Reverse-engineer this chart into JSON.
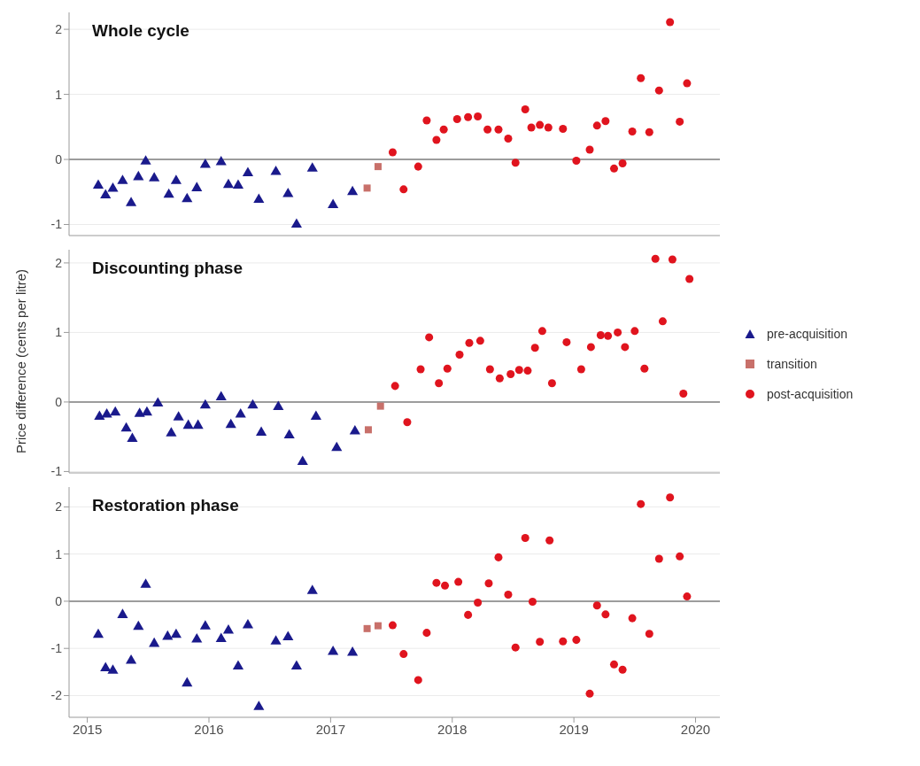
{
  "chart_data": [
    {
      "type": "scatter",
      "title": "Whole cycle",
      "xlim": [
        2014.85,
        2020.2
      ],
      "xticks": [
        2015,
        2016,
        2017,
        2018,
        2019,
        2020
      ],
      "ylim": [
        -1.17,
        2.26
      ],
      "yticks": [
        -1,
        0,
        1,
        2
      ],
      "grid": "y",
      "tick_labels": "y",
      "ref_lines": [
        {
          "axis": "y",
          "value": 0,
          "color": "#7f7f7f"
        }
      ],
      "series": [
        {
          "color": "#1a1a8c",
          "marker": "triangle",
          "x": [
            2015.09,
            2015.15,
            2015.21,
            2015.29,
            2015.36,
            2015.42,
            2015.48,
            2015.55,
            2015.67,
            2015.73,
            2015.82,
            2015.9,
            2015.97,
            2016.1,
            2016.16,
            2016.24,
            2016.32,
            2016.41,
            2016.55,
            2016.65,
            2016.72,
            2016.85,
            2017.02,
            2017.18
          ],
          "values": [
            -0.4,
            -0.55,
            -0.45,
            -0.33,
            -0.67,
            -0.27,
            -0.03,
            -0.29,
            -0.54,
            -0.33,
            -0.61,
            -0.44,
            -0.08,
            -0.04,
            -0.39,
            -0.4,
            -0.21,
            -0.62,
            -0.19,
            -0.53,
            -1.0,
            -0.14,
            -0.7,
            -0.5
          ]
        },
        {
          "color": "#c8706a",
          "marker": "square",
          "x": [
            2017.3,
            2017.39
          ],
          "values": [
            -0.44,
            -0.11
          ]
        },
        {
          "color": "#e0141e",
          "marker": "circle",
          "x": [
            2017.51,
            2017.6,
            2017.72,
            2017.79,
            2017.87,
            2017.93,
            2018.04,
            2018.13,
            2018.21,
            2018.29,
            2018.38,
            2018.46,
            2018.52,
            2018.6,
            2018.65,
            2018.72,
            2018.79,
            2018.91,
            2019.02,
            2019.13,
            2019.19,
            2019.26,
            2019.33,
            2019.4,
            2019.48,
            2019.55,
            2019.62,
            2019.7,
            2019.79,
            2019.87,
            2019.93
          ],
          "values": [
            0.11,
            -0.46,
            -0.11,
            0.6,
            0.3,
            0.46,
            0.62,
            0.65,
            0.66,
            0.46,
            0.46,
            0.32,
            -0.05,
            0.77,
            0.49,
            0.53,
            0.49,
            0.47,
            -0.02,
            0.15,
            0.52,
            0.59,
            -0.14,
            -0.06,
            0.43,
            1.25,
            0.42,
            1.06,
            2.11,
            0.58,
            1.17
          ]
        }
      ]
    },
    {
      "type": "scatter",
      "title": "Discounting phase",
      "ylabel": "Price difference (cents per litre)",
      "xlim": [
        2014.85,
        2020.2
      ],
      "xticks": [
        2015,
        2016,
        2017,
        2018,
        2019,
        2020
      ],
      "ylim": [
        -1.02,
        2.19
      ],
      "yticks": [
        -1,
        0,
        1,
        2
      ],
      "grid": "y",
      "tick_labels": "y",
      "legend": "right",
      "ref_lines": [
        {
          "axis": "y",
          "value": 0,
          "color": "#7f7f7f"
        }
      ],
      "series": [
        {
          "name": "pre-acquisition",
          "color": "#1a1a8c",
          "marker": "triangle",
          "x": [
            2015.1,
            2015.16,
            2015.23,
            2015.32,
            2015.37,
            2015.43,
            2015.49,
            2015.58,
            2015.69,
            2015.75,
            2015.83,
            2015.91,
            2015.97,
            2016.1,
            2016.18,
            2016.26,
            2016.36,
            2016.43,
            2016.57,
            2016.66,
            2016.77,
            2016.88,
            2017.05,
            2017.2
          ],
          "values": [
            -0.21,
            -0.18,
            -0.15,
            -0.38,
            -0.53,
            -0.17,
            -0.15,
            -0.02,
            -0.45,
            -0.22,
            -0.34,
            -0.34,
            -0.05,
            0.07,
            -0.33,
            -0.18,
            -0.05,
            -0.44,
            -0.07,
            -0.48,
            -0.86,
            -0.21,
            -0.66,
            -0.42
          ]
        },
        {
          "name": "transition",
          "color": "#c8706a",
          "marker": "square",
          "x": [
            2017.31,
            2017.41
          ],
          "values": [
            -0.4,
            -0.06
          ]
        },
        {
          "name": "post-acquisition",
          "color": "#e0141e",
          "marker": "circle",
          "x": [
            2017.53,
            2017.63,
            2017.74,
            2017.81,
            2017.89,
            2017.96,
            2018.06,
            2018.14,
            2018.23,
            2018.31,
            2018.39,
            2018.48,
            2018.55,
            2018.62,
            2018.68,
            2018.74,
            2018.82,
            2018.94,
            2019.06,
            2019.14,
            2019.22,
            2019.28,
            2019.36,
            2019.42,
            2019.5,
            2019.58,
            2019.67,
            2019.73,
            2019.81,
            2019.9,
            2019.95
          ],
          "values": [
            0.23,
            -0.29,
            0.47,
            0.93,
            0.27,
            0.48,
            0.68,
            0.85,
            0.88,
            0.47,
            0.34,
            0.4,
            0.46,
            0.45,
            0.78,
            1.02,
            0.27,
            0.86,
            0.47,
            0.79,
            0.96,
            0.95,
            1.0,
            0.79,
            1.02,
            0.48,
            2.06,
            1.16,
            2.05,
            0.12,
            1.77
          ]
        }
      ]
    },
    {
      "type": "scatter",
      "title": "Restoration phase",
      "xlim": [
        2014.85,
        2020.2
      ],
      "xticks": [
        2015,
        2016,
        2017,
        2018,
        2019,
        2020
      ],
      "ylim": [
        -2.46,
        2.42
      ],
      "yticks": [
        -2,
        -1,
        0,
        1,
        2
      ],
      "grid": "y",
      "ref_lines": [
        {
          "axis": "y",
          "value": 0,
          "color": "#7f7f7f"
        }
      ],
      "series": [
        {
          "color": "#1a1a8c",
          "marker": "triangle",
          "x": [
            2015.09,
            2015.15,
            2015.21,
            2015.29,
            2015.36,
            2015.42,
            2015.48,
            2015.55,
            2015.66,
            2015.73,
            2015.82,
            2015.9,
            2015.97,
            2016.1,
            2016.16,
            2016.24,
            2016.32,
            2016.41,
            2016.55,
            2016.65,
            2016.72,
            2016.85,
            2017.02,
            2017.18
          ],
          "values": [
            -0.71,
            -1.42,
            -1.47,
            -0.29,
            -1.26,
            -0.54,
            0.35,
            -0.9,
            -0.75,
            -0.71,
            -1.74,
            -0.81,
            -0.53,
            -0.8,
            -0.62,
            -1.38,
            -0.51,
            -2.24,
            -0.85,
            -0.76,
            -1.38,
            0.22,
            -1.07,
            -1.09
          ]
        },
        {
          "color": "#c8706a",
          "marker": "square",
          "x": [
            2017.3,
            2017.39
          ],
          "values": [
            -0.58,
            -0.52
          ]
        },
        {
          "color": "#e0141e",
          "marker": "circle",
          "x": [
            2017.51,
            2017.6,
            2017.72,
            2017.79,
            2017.87,
            2017.94,
            2018.05,
            2018.13,
            2018.21,
            2018.3,
            2018.38,
            2018.46,
            2018.52,
            2018.6,
            2018.66,
            2018.72,
            2018.8,
            2018.91,
            2019.02,
            2019.13,
            2019.19,
            2019.26,
            2019.33,
            2019.4,
            2019.48,
            2019.55,
            2019.62,
            2019.7,
            2019.79,
            2019.87,
            2019.93
          ],
          "values": [
            -0.51,
            -1.12,
            -1.67,
            -0.67,
            0.39,
            0.33,
            0.41,
            -0.29,
            -0.03,
            0.38,
            0.93,
            0.14,
            -0.98,
            1.34,
            -0.01,
            -0.86,
            1.29,
            -0.85,
            -0.82,
            -1.96,
            -0.09,
            -0.28,
            -1.34,
            -1.45,
            -0.36,
            2.06,
            -0.69,
            0.9,
            2.2,
            0.95,
            0.1
          ]
        }
      ]
    }
  ]
}
